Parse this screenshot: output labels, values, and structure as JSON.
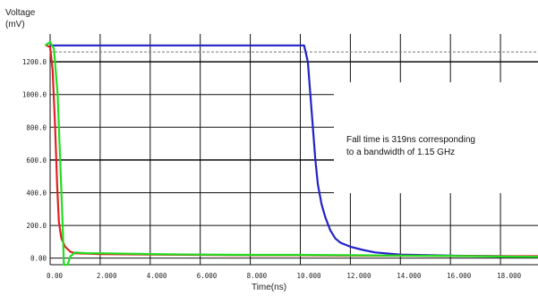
{
  "chart_data": {
    "type": "line",
    "ylabel_line1": "Voltage",
    "ylabel_line2": "(mV)",
    "xlabel": "Time(ns)",
    "xlim": [
      0,
      19.5
    ],
    "ylim": [
      -40,
      1370
    ],
    "x_ticks": [
      "0.00",
      "2.000",
      "4.000",
      "6.000",
      "8.000",
      "10.000",
      "12.000",
      "14.000",
      "16.000",
      "18.000"
    ],
    "x_tick_values": [
      0,
      2,
      4,
      6,
      8,
      10,
      12,
      14,
      16,
      18
    ],
    "y_ticks": [
      "0.00",
      "200.0",
      "400.0",
      "600.0",
      "800.0",
      "1000.0",
      "1200.0"
    ],
    "y_tick_values": [
      0,
      200,
      400,
      600,
      800,
      1000,
      1200
    ],
    "threshold_lines": [
      600,
      1200,
      1260
    ],
    "grid": true,
    "annotation_line1": "Fall time is 319ns corresponding",
    "annotation_line2": "to a bandwidth of 1.15 GHz",
    "series": [
      {
        "color": "#2222c8",
        "points": [
          [
            0,
            1300
          ],
          [
            2,
            1300
          ],
          [
            4,
            1300
          ],
          [
            6,
            1300
          ],
          [
            8,
            1300
          ],
          [
            10,
            1300
          ],
          [
            10.15,
            1300
          ],
          [
            10.3,
            1200
          ],
          [
            10.4,
            1000
          ],
          [
            10.5,
            800
          ],
          [
            10.6,
            600
          ],
          [
            10.7,
            450
          ],
          [
            10.85,
            330
          ],
          [
            11.0,
            250
          ],
          [
            11.2,
            170
          ],
          [
            11.4,
            120
          ],
          [
            11.6,
            95
          ],
          [
            12.0,
            70
          ],
          [
            12.5,
            50
          ],
          [
            13.0,
            35
          ],
          [
            14.0,
            22
          ],
          [
            16.0,
            15
          ],
          [
            18.0,
            12
          ],
          [
            19.5,
            10
          ]
        ]
      },
      {
        "color": "#dd2222",
        "points": [
          [
            -0.15,
            1300
          ],
          [
            0.0,
            1290
          ],
          [
            0.1,
            1150
          ],
          [
            0.2,
            800
          ],
          [
            0.28,
            450
          ],
          [
            0.35,
            220
          ],
          [
            0.45,
            120
          ],
          [
            0.6,
            70
          ],
          [
            0.8,
            40
          ],
          [
            1.0,
            30
          ],
          [
            2,
            25
          ],
          [
            4,
            22
          ],
          [
            6,
            20
          ],
          [
            8,
            18
          ],
          [
            10,
            18
          ],
          [
            12,
            16
          ],
          [
            14,
            15
          ],
          [
            16,
            14
          ],
          [
            18,
            12
          ],
          [
            19.5,
            12
          ]
        ]
      },
      {
        "color": "#22dd22",
        "points": [
          [
            -0.2,
            1300
          ],
          [
            0.0,
            1320
          ],
          [
            0.15,
            1280
          ],
          [
            0.3,
            1000
          ],
          [
            0.4,
            600
          ],
          [
            0.5,
            200
          ],
          [
            0.55,
            -40
          ],
          [
            0.7,
            -40
          ],
          [
            0.8,
            10
          ],
          [
            1.0,
            35
          ],
          [
            1.5,
            30
          ],
          [
            2,
            30
          ],
          [
            4,
            25
          ],
          [
            6,
            22
          ],
          [
            8,
            20
          ],
          [
            10,
            20
          ],
          [
            12,
            18
          ],
          [
            14,
            16
          ],
          [
            16,
            14
          ],
          [
            18,
            10
          ],
          [
            19.5,
            8
          ]
        ]
      }
    ]
  }
}
